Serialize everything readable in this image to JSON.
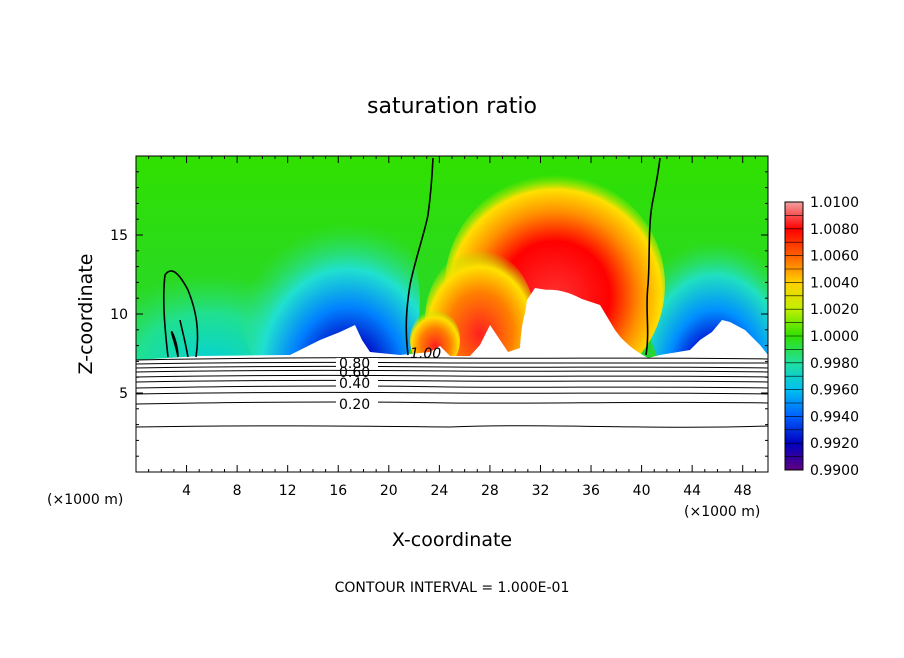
{
  "chart_data": {
    "type": "heatmap",
    "title": "saturation ratio",
    "xlabel": "X-coordinate",
    "ylabel": "Z-coordinate",
    "x_unit_left": "(×1000 m)",
    "x_unit_right": "(×1000 m)",
    "footer": "CONTOUR INTERVAL = 1.000E-01",
    "xlim": [
      0,
      50
    ],
    "ylim": [
      0,
      20
    ],
    "x_ticks": [
      4,
      8,
      12,
      16,
      20,
      24,
      28,
      32,
      36,
      40,
      44,
      48
    ],
    "x_tick_labels": [
      "4",
      "8",
      "12",
      "16",
      "20",
      "24",
      "28",
      "32",
      "36",
      "40",
      "44",
      "48"
    ],
    "y_ticks": [
      5,
      10,
      15
    ],
    "y_tick_labels": [
      "5",
      "10",
      "15"
    ],
    "colorbar": {
      "min": 0.99,
      "max": 1.01,
      "labels": [
        "1.0100",
        "1.0080",
        "1.0060",
        "1.0040",
        "1.0020",
        "1.0000",
        "0.9980",
        "0.9960",
        "0.9940",
        "0.9920",
        "0.9900"
      ],
      "values": [
        1.01,
        1.008,
        1.006,
        1.004,
        1.002,
        1.0,
        0.998,
        0.996,
        0.994,
        0.992,
        0.99
      ],
      "colors": [
        "#f0a0a0",
        "#ff3030",
        "#ff0000",
        "#ff8000",
        "#ffd000",
        "#e8f000",
        "#40d000",
        "#20e090",
        "#00a0ff",
        "#0000c0",
        "#600080"
      ]
    },
    "contour_labels": [
      {
        "text": "1.00",
        "x": 22.5,
        "z": 7.5
      },
      {
        "text": "0.80",
        "x": 17.5,
        "z": 7.0
      },
      {
        "text": "0.60",
        "x": 17.5,
        "z": 6.5
      },
      {
        "text": "0.40",
        "x": 17.5,
        "z": 5.9
      },
      {
        "text": "0.20",
        "x": 17.5,
        "z": 4.5
      }
    ],
    "cloud_base_z": 7.5
  }
}
